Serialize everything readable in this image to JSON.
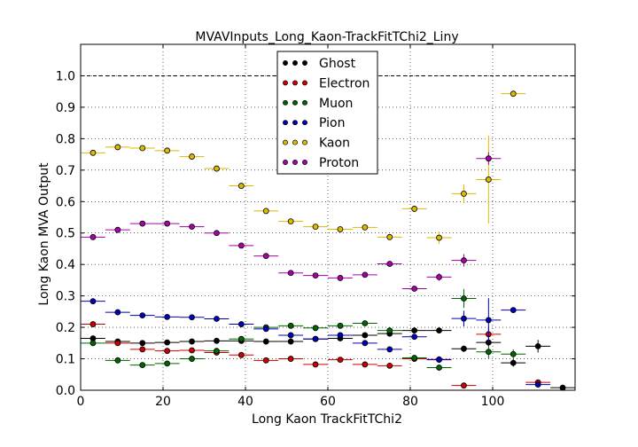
{
  "chart_data": {
    "type": "scatter",
    "title": "MVAVInputs_Long_Kaon-TrackFitTChi2_Liny",
    "xlabel": "Long Kaon TrackFitTChi2",
    "ylabel": "Long Kaon MVA Output",
    "xlim": [
      0,
      120
    ],
    "ylim": [
      0,
      1.1
    ],
    "x_ticks": [
      "0",
      "20",
      "40",
      "60",
      "80",
      "100"
    ],
    "y_ticks": [
      "0.0",
      "0.1",
      "0.2",
      "0.3",
      "0.4",
      "0.5",
      "0.6",
      "0.7",
      "0.8",
      "0.9",
      "1.0"
    ],
    "grid": true,
    "reference_line_y": 1.0,
    "legend_position": "top-center",
    "bin_half_width": 3,
    "series": [
      {
        "name": "Ghost",
        "color": "#000000",
        "points": [
          [
            3,
            0.165,
            0.004
          ],
          [
            9,
            0.155,
            0.004
          ],
          [
            15,
            0.15,
            0.004
          ],
          [
            21,
            0.152,
            0.004
          ],
          [
            27,
            0.155,
            0.004
          ],
          [
            33,
            0.157,
            0.004
          ],
          [
            39,
            0.157,
            0.004
          ],
          [
            45,
            0.155,
            0.005
          ],
          [
            51,
            0.155,
            0.005
          ],
          [
            57,
            0.163,
            0.005
          ],
          [
            63,
            0.165,
            0.006
          ],
          [
            69,
            0.175,
            0.006
          ],
          [
            75,
            0.18,
            0.007
          ],
          [
            81,
            0.19,
            0.008
          ],
          [
            87,
            0.19,
            0.009
          ],
          [
            93,
            0.132,
            0.01
          ],
          [
            99,
            0.152,
            0.012
          ],
          [
            105,
            0.087,
            0.012
          ],
          [
            111,
            0.14,
            0.02
          ],
          [
            117,
            0.008,
            0.006
          ]
        ]
      },
      {
        "name": "Electron",
        "color": "#cc0000",
        "points": [
          [
            3,
            0.21,
            0.005
          ],
          [
            9,
            0.15,
            0.005
          ],
          [
            15,
            0.13,
            0.005
          ],
          [
            21,
            0.125,
            0.005
          ],
          [
            27,
            0.127,
            0.005
          ],
          [
            33,
            0.12,
            0.005
          ],
          [
            39,
            0.112,
            0.005
          ],
          [
            45,
            0.095,
            0.005
          ],
          [
            51,
            0.1,
            0.006
          ],
          [
            57,
            0.082,
            0.006
          ],
          [
            63,
            0.097,
            0.006
          ],
          [
            69,
            0.082,
            0.006
          ],
          [
            75,
            0.078,
            0.007
          ],
          [
            81,
            0.1,
            0.008
          ],
          [
            87,
            0.098,
            0.01
          ],
          [
            93,
            0.015,
            0.006
          ],
          [
            99,
            0.178,
            0.025
          ],
          [
            111,
            0.025,
            0.008
          ]
        ]
      },
      {
        "name": "Muon",
        "color": "#006600",
        "points": [
          [
            3,
            0.15,
            0.005
          ],
          [
            9,
            0.095,
            0.005
          ],
          [
            15,
            0.08,
            0.005
          ],
          [
            21,
            0.085,
            0.005
          ],
          [
            27,
            0.1,
            0.005
          ],
          [
            33,
            0.125,
            0.005
          ],
          [
            39,
            0.163,
            0.005
          ],
          [
            45,
            0.2,
            0.006
          ],
          [
            51,
            0.205,
            0.006
          ],
          [
            57,
            0.198,
            0.006
          ],
          [
            63,
            0.205,
            0.007
          ],
          [
            69,
            0.213,
            0.008
          ],
          [
            75,
            0.19,
            0.008
          ],
          [
            81,
            0.103,
            0.008
          ],
          [
            87,
            0.072,
            0.01
          ],
          [
            93,
            0.292,
            0.03
          ],
          [
            99,
            0.122,
            0.02
          ],
          [
            105,
            0.115,
            0.015
          ]
        ]
      },
      {
        "name": "Pion",
        "color": "#0000bb",
        "points": [
          [
            3,
            0.283,
            0.004
          ],
          [
            9,
            0.248,
            0.004
          ],
          [
            15,
            0.238,
            0.004
          ],
          [
            21,
            0.233,
            0.004
          ],
          [
            27,
            0.232,
            0.004
          ],
          [
            33,
            0.227,
            0.004
          ],
          [
            39,
            0.21,
            0.004
          ],
          [
            45,
            0.195,
            0.005
          ],
          [
            51,
            0.175,
            0.005
          ],
          [
            57,
            0.163,
            0.005
          ],
          [
            63,
            0.175,
            0.006
          ],
          [
            69,
            0.15,
            0.006
          ],
          [
            75,
            0.13,
            0.007
          ],
          [
            81,
            0.17,
            0.008
          ],
          [
            87,
            0.097,
            0.01
          ],
          [
            93,
            0.228,
            0.025
          ],
          [
            99,
            0.223,
            0.07
          ],
          [
            105,
            0.255,
            0.005
          ],
          [
            111,
            0.018,
            0.005
          ]
        ]
      },
      {
        "name": "Kaon",
        "color": "#ddbb00",
        "points": [
          [
            3,
            0.755,
            0.004
          ],
          [
            9,
            0.773,
            0.004
          ],
          [
            15,
            0.77,
            0.004
          ],
          [
            21,
            0.762,
            0.004
          ],
          [
            27,
            0.743,
            0.004
          ],
          [
            33,
            0.705,
            0.004
          ],
          [
            39,
            0.65,
            0.004
          ],
          [
            45,
            0.57,
            0.005
          ],
          [
            51,
            0.537,
            0.005
          ],
          [
            57,
            0.52,
            0.006
          ],
          [
            63,
            0.512,
            0.006
          ],
          [
            69,
            0.518,
            0.007
          ],
          [
            75,
            0.487,
            0.008
          ],
          [
            81,
            0.577,
            0.01
          ],
          [
            87,
            0.485,
            0.02
          ],
          [
            93,
            0.625,
            0.03
          ],
          [
            99,
            0.67,
            0.14
          ],
          [
            105,
            0.943,
            0.005
          ]
        ]
      },
      {
        "name": "Proton",
        "color": "#aa00aa",
        "points": [
          [
            3,
            0.487,
            0.004
          ],
          [
            9,
            0.51,
            0.004
          ],
          [
            15,
            0.53,
            0.004
          ],
          [
            21,
            0.53,
            0.004
          ],
          [
            27,
            0.52,
            0.004
          ],
          [
            33,
            0.5,
            0.004
          ],
          [
            39,
            0.46,
            0.004
          ],
          [
            45,
            0.427,
            0.005
          ],
          [
            51,
            0.373,
            0.005
          ],
          [
            57,
            0.365,
            0.005
          ],
          [
            63,
            0.357,
            0.006
          ],
          [
            69,
            0.367,
            0.006
          ],
          [
            75,
            0.402,
            0.006
          ],
          [
            81,
            0.323,
            0.007
          ],
          [
            87,
            0.36,
            0.012
          ],
          [
            93,
            0.413,
            0.02
          ],
          [
            99,
            0.737,
            0.02
          ]
        ]
      }
    ]
  }
}
